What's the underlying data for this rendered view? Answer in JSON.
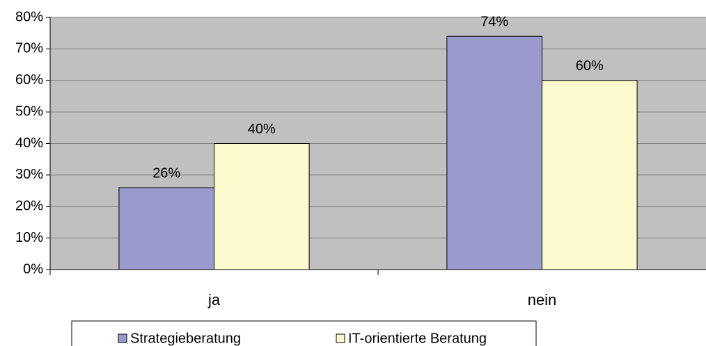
{
  "chart_data": {
    "type": "bar",
    "categories": [
      "ja",
      "nein"
    ],
    "series": [
      {
        "name": "Strategieberatung",
        "color": "#9999cc",
        "values": [
          26,
          74
        ],
        "value_labels": [
          "26%",
          "74%"
        ]
      },
      {
        "name": "IT-orientierte Beratung",
        "color": "#fafacc",
        "values": [
          40,
          60
        ],
        "value_labels": [
          "40%",
          "60%"
        ]
      }
    ],
    "ylim": [
      0,
      80
    ],
    "yticks": [
      {
        "value": 0,
        "label": "0%"
      },
      {
        "value": 10,
        "label": "10%"
      },
      {
        "value": 20,
        "label": "20%"
      },
      {
        "value": 30,
        "label": "30%"
      },
      {
        "value": 40,
        "label": "40%"
      },
      {
        "value": 50,
        "label": "50%"
      },
      {
        "value": 60,
        "label": "60%"
      },
      {
        "value": 70,
        "label": "70%"
      },
      {
        "value": 80,
        "label": "80%"
      }
    ],
    "grid": true,
    "legend": "bottom"
  }
}
